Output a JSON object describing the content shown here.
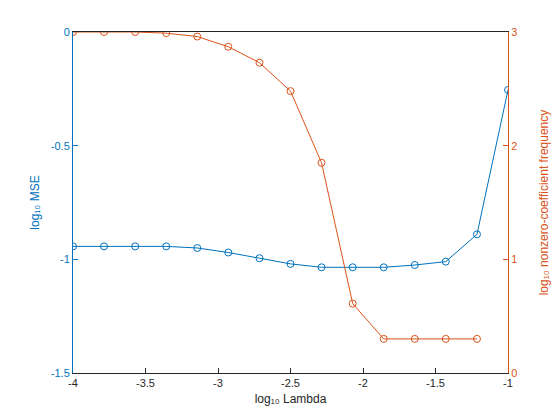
{
  "chart_data": {
    "type": "line",
    "xlabel": "log₁₀ Lambda",
    "ylabel": "log₁₀ MSE",
    "y2label": "log₁₀ nonzero-coefficient frequency",
    "x": [
      -4,
      -3.786,
      -3.571,
      -3.357,
      -3.143,
      -2.929,
      -2.714,
      -2.5,
      -2.286,
      -2.071,
      -1.857,
      -1.643,
      -1.429,
      -1.214,
      -1
    ],
    "series": [
      {
        "name": "log₁₀ MSE",
        "color": "#0072bd",
        "marker": "circle-open",
        "line_style": "solid",
        "values": [
          -0.943,
          -0.943,
          -0.943,
          -0.943,
          -0.95,
          -0.97,
          -0.995,
          -1.02,
          -1.035,
          -1.035,
          -1.035,
          -1.025,
          -1.01,
          -0.89,
          -0.255
        ]
      },
      {
        "name": "log₁₀ nonzero-coefficient frequency",
        "color": "#d95319",
        "marker": "circle-open",
        "line_style": "solid",
        "axis": "y2",
        "values": [
          3,
          3,
          3,
          2.99,
          2.96,
          2.87,
          2.73,
          2.48,
          1.85,
          0.61,
          0.3,
          0.3,
          0.3,
          0.3,
          null
        ]
      }
    ],
    "xlim": [
      -4,
      -1
    ],
    "xticks": [
      -4,
      -3.5,
      -3,
      -2.5,
      -2,
      -1.5,
      -1
    ],
    "ylim": [
      -1.5,
      0
    ],
    "yticks": [
      -1.5,
      -1,
      -0.5,
      0
    ],
    "y2lim": [
      0,
      3
    ],
    "y2ticks": [
      0,
      1,
      2,
      3
    ],
    "grid": false
  }
}
